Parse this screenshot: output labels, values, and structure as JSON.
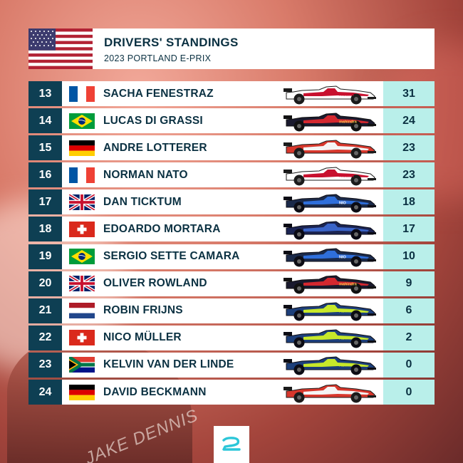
{
  "header": {
    "title": "DRIVERS' STANDINGS",
    "subtitle": "2023 PORTLAND E-PRIX",
    "flag": "us-flag"
  },
  "background_text": "JAKE DENNIS",
  "colors": {
    "position_bg": "#0e3f53",
    "points_bg": "#b9efea",
    "text": "#0b3142",
    "row_bg": "#ffffff"
  },
  "drivers": [
    {
      "pos": "13",
      "name": "SACHA FENESTRAZ",
      "points": "31",
      "flag": "fr",
      "car": "nissan",
      "car_label": "NISSAN"
    },
    {
      "pos": "14",
      "name": "LUCAS DI GRASSI",
      "points": "24",
      "flag": "br",
      "car": "mahindra",
      "car_label": "mahindra"
    },
    {
      "pos": "15",
      "name": "ANDRE LOTTERER",
      "points": "23",
      "flag": "de",
      "car": "andretti",
      "car_label": ""
    },
    {
      "pos": "16",
      "name": "NORMAN NATO",
      "points": "23",
      "flag": "fr",
      "car": "nissan",
      "car_label": "NISSAN"
    },
    {
      "pos": "17",
      "name": "DAN TICKTUM",
      "points": "18",
      "flag": "gb",
      "car": "nio",
      "car_label": "NIO"
    },
    {
      "pos": "18",
      "name": "EDOARDO MORTARA",
      "points": "17",
      "flag": "ch",
      "car": "maserati",
      "car_label": ""
    },
    {
      "pos": "19",
      "name": "SERGIO SETTE CAMARA",
      "points": "10",
      "flag": "br",
      "car": "nio",
      "car_label": "NIO"
    },
    {
      "pos": "20",
      "name": "OLIVER ROWLAND",
      "points": "9",
      "flag": "gb",
      "car": "mahindra",
      "car_label": "mahindra"
    },
    {
      "pos": "21",
      "name": "ROBIN FRIJNS",
      "points": "6",
      "flag": "nl",
      "car": "abt",
      "car_label": "ABT"
    },
    {
      "pos": "22",
      "name": "NICO MÜLLER",
      "points": "2",
      "flag": "ch",
      "car": "abt",
      "car_label": "ABT"
    },
    {
      "pos": "23",
      "name": "KELVIN VAN DER LINDE",
      "points": "0",
      "flag": "za",
      "car": "abt",
      "car_label": "ABT"
    },
    {
      "pos": "24",
      "name": "DAVID BECKMANN",
      "points": "0",
      "flag": "de",
      "car": "andretti",
      "car_label": ""
    }
  ]
}
